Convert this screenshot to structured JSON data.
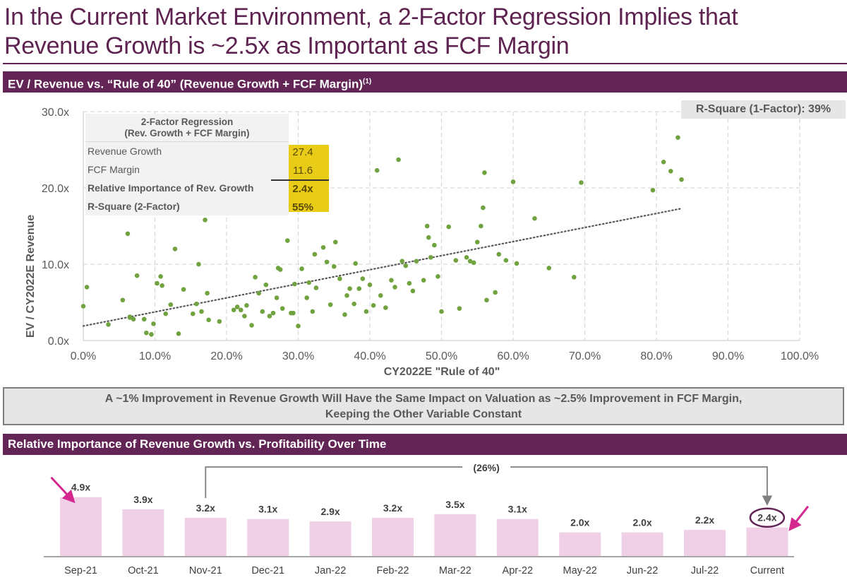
{
  "title": {
    "line1": "In the Current Market Environment, a 2-Factor Regression Implies that",
    "line2": "Revenue Growth is ~2.5x as Important as FCF Margin"
  },
  "section1": {
    "header": "EV / Revenue vs. “Rule of 40” (Revenue Growth + FCF Margin)",
    "footnote_marker": "(1)"
  },
  "regression_table": {
    "title_line1": "2-Factor Regression",
    "title_line2": "(Rev. Growth + FCF Margin)",
    "rows": [
      {
        "label": "Revenue Growth",
        "value": "27.4",
        "bold": false
      },
      {
        "label": "FCF Margin",
        "value": "11.6",
        "bold": false
      },
      {
        "label": "Relative Importance of Rev. Growth",
        "value": "2.4x",
        "bold": true
      },
      {
        "label": "R-Square (2-Factor)",
        "value": "55%",
        "bold": true
      }
    ],
    "highlight_color": "#e8cc17"
  },
  "r_square_1factor": "R-Square (1-Factor): 39%",
  "callout": {
    "line1": "A ~1% Improvement in Revenue Growth Will Have the Same Impact on Valuation as ~2.5% Improvement in FCF Margin,",
    "line2": "Keeping the Other Variable Constant"
  },
  "section2": {
    "header": "Relative Importance of Revenue Growth vs. Profitability Over Time",
    "change_label": "(26%)"
  },
  "colors": {
    "brand_purple": "#622556",
    "point_green": "#70a33f",
    "bar_pink": "#efd0e6",
    "arrow_magenta": "#d4288f"
  },
  "chart_data": [
    {
      "type": "scatter",
      "title": "EV / Revenue vs. Rule of 40",
      "xlabel": "CY2022E \"Rule of 40\"",
      "ylabel": "EV / CY2022E Revenue",
      "xlim": [
        0,
        100
      ],
      "ylim": [
        0,
        30
      ],
      "x_ticks": [
        "0.0%",
        "10.0%",
        "20.0%",
        "30.0%",
        "40.0%",
        "50.0%",
        "60.0%",
        "70.0%",
        "80.0%",
        "90.0%",
        "100.0%"
      ],
      "y_ticks": [
        "0.0x",
        "10.0x",
        "20.0x",
        "30.0x"
      ],
      "grid": true,
      "trendline": {
        "style": "dotted",
        "x": [
          0,
          83.5
        ],
        "y": [
          1.9,
          17.3
        ]
      },
      "points": [
        [
          0.0,
          4.5
        ],
        [
          0.5,
          7.0
        ],
        [
          3.5,
          2.1
        ],
        [
          5.5,
          5.3
        ],
        [
          6.2,
          14.0
        ],
        [
          6.5,
          3.1
        ],
        [
          6.5,
          3.0
        ],
        [
          7.0,
          2.8
        ],
        [
          7.5,
          8.5
        ],
        [
          8.5,
          2.8
        ],
        [
          8.8,
          1.0
        ],
        [
          9.5,
          0.8
        ],
        [
          9.8,
          2.2
        ],
        [
          10.3,
          7.5
        ],
        [
          10.8,
          8.4
        ],
        [
          11.0,
          7.2
        ],
        [
          11.5,
          3.5
        ],
        [
          12.2,
          4.7
        ],
        [
          12.8,
          12.0
        ],
        [
          13.3,
          0.9
        ],
        [
          14.0,
          6.7
        ],
        [
          15.3,
          3.5
        ],
        [
          15.8,
          4.8
        ],
        [
          16.1,
          10.0
        ],
        [
          16.5,
          3.8
        ],
        [
          17.0,
          15.8
        ],
        [
          17.3,
          6.2
        ],
        [
          17.5,
          2.7
        ],
        [
          19.0,
          2.5
        ],
        [
          21.0,
          4.0
        ],
        [
          21.5,
          4.4
        ],
        [
          22.0,
          4.0
        ],
        [
          22.5,
          3.2
        ],
        [
          22.8,
          4.6
        ],
        [
          23.5,
          2.0
        ],
        [
          24.0,
          8.3
        ],
        [
          24.5,
          6.2
        ],
        [
          25.0,
          3.8
        ],
        [
          25.5,
          7.3
        ],
        [
          26.0,
          3.2
        ],
        [
          26.5,
          3.6
        ],
        [
          27.0,
          5.6
        ],
        [
          27.2,
          9.5
        ],
        [
          27.5,
          9.3
        ],
        [
          27.8,
          4.2
        ],
        [
          28.5,
          13.1
        ],
        [
          29.0,
          3.6
        ],
        [
          29.3,
          3.6
        ],
        [
          29.5,
          7.4
        ],
        [
          30.0,
          1.9
        ],
        [
          30.5,
          9.4
        ],
        [
          31.2,
          5.6
        ],
        [
          31.5,
          7.6
        ],
        [
          32.0,
          3.8
        ],
        [
          32.3,
          11.3
        ],
        [
          32.5,
          6.9
        ],
        [
          33.5,
          12.2
        ],
        [
          34.0,
          10.3
        ],
        [
          34.5,
          4.7
        ],
        [
          35.0,
          9.7
        ],
        [
          35.2,
          12.9
        ],
        [
          35.8,
          8.1
        ],
        [
          36.5,
          3.4
        ],
        [
          36.8,
          5.9
        ],
        [
          37.2,
          6.8
        ],
        [
          37.8,
          4.8
        ],
        [
          38.0,
          10.1
        ],
        [
          38.5,
          6.8
        ],
        [
          39.0,
          8.1
        ],
        [
          39.5,
          3.8
        ],
        [
          40.0,
          7.3
        ],
        [
          40.5,
          4.6
        ],
        [
          41.0,
          22.3
        ],
        [
          41.5,
          5.9
        ],
        [
          42.2,
          4.3
        ],
        [
          43.0,
          7.9
        ],
        [
          43.5,
          7.0
        ],
        [
          44.0,
          23.7
        ],
        [
          44.5,
          10.4
        ],
        [
          45.0,
          9.8
        ],
        [
          45.5,
          7.5
        ],
        [
          46.0,
          6.5
        ],
        [
          46.5,
          10.4
        ],
        [
          47.5,
          7.9
        ],
        [
          48.0,
          15.0
        ],
        [
          48.2,
          13.5
        ],
        [
          48.5,
          10.9
        ],
        [
          49.0,
          12.5
        ],
        [
          49.5,
          8.4
        ],
        [
          50.0,
          3.8
        ],
        [
          51.0,
          14.9
        ],
        [
          52.0,
          10.5
        ],
        [
          52.5,
          4.2
        ],
        [
          53.5,
          10.9
        ],
        [
          54.0,
          10.4
        ],
        [
          54.5,
          10.2
        ],
        [
          55.0,
          12.9
        ],
        [
          55.5,
          15.0
        ],
        [
          55.8,
          17.4
        ],
        [
          56.0,
          22.0
        ],
        [
          56.3,
          5.3
        ],
        [
          57.5,
          6.3
        ],
        [
          58.0,
          11.3
        ],
        [
          59.0,
          10.5
        ],
        [
          60.0,
          20.8
        ],
        [
          60.5,
          10.1
        ],
        [
          63.0,
          16.0
        ],
        [
          65.0,
          9.5
        ],
        [
          68.5,
          8.3
        ],
        [
          69.5,
          20.7
        ],
        [
          79.5,
          19.7
        ],
        [
          81.0,
          23.4
        ],
        [
          82.0,
          22.2
        ],
        [
          83.0,
          26.6
        ],
        [
          83.5,
          21.1
        ]
      ]
    },
    {
      "type": "bar",
      "title": "Relative Importance of Revenue Growth vs. Profitability Over Time",
      "categories": [
        "Sep-21",
        "Oct-21",
        "Nov-21",
        "Dec-21",
        "Jan-22",
        "Feb-22",
        "Mar-22",
        "Apr-22",
        "May-22",
        "Jun-22",
        "Jul-22",
        "Current"
      ],
      "values": [
        4.9,
        3.9,
        3.2,
        3.1,
        2.9,
        3.2,
        3.5,
        3.1,
        2.0,
        2.0,
        2.2,
        2.4
      ],
      "data_labels": [
        "4.9x",
        "3.9x",
        "3.2x",
        "3.1x",
        "2.9x",
        "3.2x",
        "3.5x",
        "3.1x",
        "2.0x",
        "2.0x",
        "2.2x",
        "2.4x"
      ],
      "annotations": [
        {
          "type": "bracket",
          "from": "Nov-21",
          "to": "Current",
          "label": "(26%)"
        },
        {
          "type": "circle",
          "target": "Current"
        },
        {
          "type": "arrow",
          "target": "Sep-21"
        },
        {
          "type": "arrow",
          "target": "Current"
        }
      ],
      "xlabel": "",
      "ylabel": ""
    }
  ]
}
